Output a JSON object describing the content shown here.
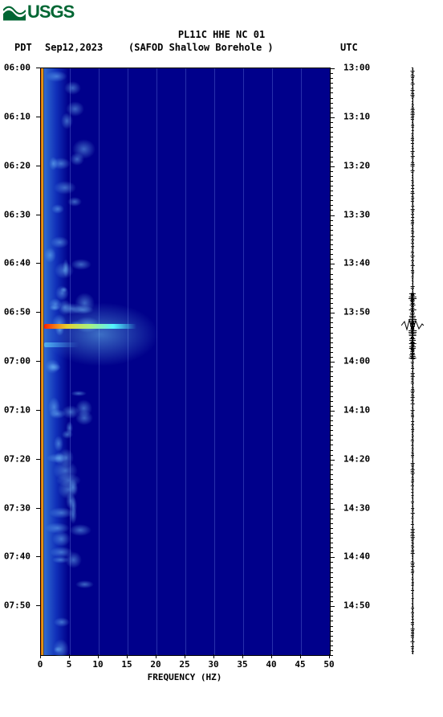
{
  "logo": {
    "text": "USGS",
    "color": "#006633"
  },
  "title": "PL11C HHE NC 01",
  "header": {
    "left_tz": "PDT",
    "date": "Sep12,2023",
    "station": "(SAFOD Shallow Borehole )",
    "right_tz": "UTC"
  },
  "spectrogram": {
    "type": "spectrogram",
    "background_color": "#00008b",
    "xlim": [
      0,
      50
    ],
    "x_ticks": [
      0,
      5,
      10,
      15,
      20,
      25,
      30,
      35,
      40,
      45,
      50
    ],
    "xlabel": "FREQUENCY (HZ)",
    "left_time_labels": [
      "06:00",
      "06:10",
      "06:20",
      "06:30",
      "06:40",
      "06:50",
      "07:00",
      "07:10",
      "07:20",
      "07:30",
      "07:40",
      "07:50"
    ],
    "right_time_labels": [
      "13:00",
      "13:10",
      "13:20",
      "13:30",
      "13:40",
      "13:50",
      "14:00",
      "14:10",
      "14:20",
      "14:30",
      "14:40",
      "14:50"
    ],
    "time_fractions": [
      0.0,
      0.083,
      0.167,
      0.25,
      0.333,
      0.417,
      0.5,
      0.583,
      0.667,
      0.75,
      0.833,
      0.917
    ],
    "grid_color": "#5060d0",
    "event": {
      "time_fraction": 0.44,
      "freq_extent_hz": 16,
      "colors": [
        "#ff2000",
        "#ffcc00",
        "#c0ff40",
        "#40ffff"
      ]
    },
    "secondary_event": {
      "time_fraction": 0.47,
      "freq_extent_hz": 6,
      "color": "#60d0ff"
    }
  },
  "waveform": {
    "spike_time_fraction": 0.44,
    "spike_color": "#000000"
  }
}
